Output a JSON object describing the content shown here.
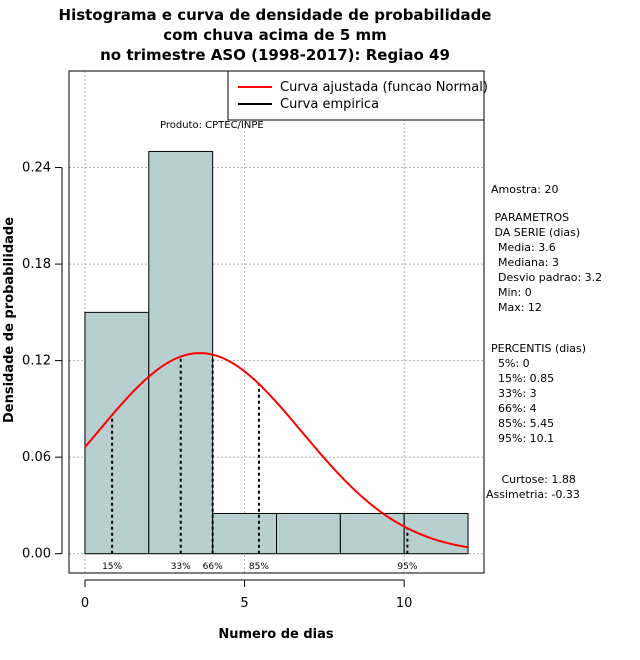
{
  "title_lines": [
    "Histograma e curva de densidade de probabilidade",
    "com chuva acima de 5 mm",
    "no trimestre ASO (1998-2017): Regiao 49"
  ],
  "product_label": "Produto: CPTEC/INPE",
  "side_panel": {
    "sample": "Amostra: 20",
    "params_header": [
      " PARAMETROS",
      " DA SERIE (dias)"
    ],
    "params": [
      "  Media: 3.6",
      "  Mediana: 3",
      "  Desvio padrao: 3.2",
      "  Min: 0",
      "  Max: 12"
    ],
    "percentiles_header": "PERCENTIS (dias)",
    "percentiles": [
      "  5%: 0",
      "  15%: 0.85",
      "  33%: 3",
      "  66%: 4",
      "  85%: 5.45",
      "  95%: 10.1"
    ],
    "kurtosis": "   Curtose: 1.88",
    "skewness": "Assimetria: -0.33"
  },
  "chart_data": {
    "type": "bar",
    "xlabel": "Numero de dias",
    "ylabel": "Densidade de probabilidade",
    "xlim": [
      -0.5,
      12.5
    ],
    "ylim": [
      -0.012,
      0.3
    ],
    "xticks": [
      0,
      5,
      10
    ],
    "yticks": [
      0.0,
      0.06,
      0.12,
      0.18,
      0.24
    ],
    "ytick_labels": [
      "0.00",
      "0.06",
      "0.12",
      "0.18",
      "0.24"
    ],
    "grid": true,
    "bar_color": "#b7cfcf",
    "histogram": [
      {
        "x0": 0,
        "x1": 2,
        "density": 0.15
      },
      {
        "x0": 2,
        "x1": 4,
        "density": 0.25
      },
      {
        "x0": 4,
        "x1": 6,
        "density": 0.025
      },
      {
        "x0": 6,
        "x1": 8,
        "density": 0.025
      },
      {
        "x0": 8,
        "x1": 10,
        "density": 0.025
      },
      {
        "x0": 10,
        "x1": 12,
        "density": 0.025
      }
    ],
    "normal_fit": {
      "mean": 3.6,
      "sd": 3.2,
      "x_range": [
        0,
        12
      ],
      "color": "#ff0000"
    },
    "percentile_lines": [
      {
        "label": "15%",
        "x": 0.85
      },
      {
        "label": "33%",
        "x": 3
      },
      {
        "label": "66%",
        "x": 4
      },
      {
        "label": "85%",
        "x": 5.45
      },
      {
        "label": "95%",
        "x": 10.1
      }
    ],
    "legend": {
      "position": "top-right",
      "entries": [
        {
          "label": "Curva ajustada (funcao Normal)",
          "color": "#ff0000"
        },
        {
          "label": "Curva empirica",
          "color": "#000000"
        }
      ]
    }
  }
}
